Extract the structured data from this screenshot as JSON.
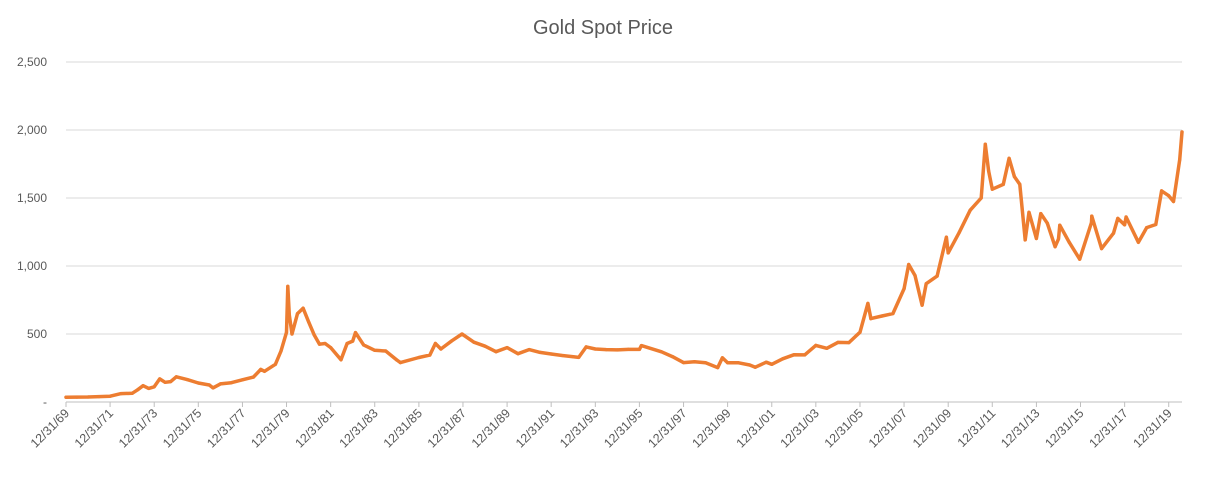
{
  "chart_data": {
    "type": "line",
    "title": "Gold Spot Price",
    "xlabel": "",
    "ylabel": "",
    "ylim": [
      0,
      2500
    ],
    "y_ticks": [
      {
        "value": 0,
        "label": "-"
      },
      {
        "value": 500,
        "label": "500"
      },
      {
        "value": 1000,
        "label": "1,000"
      },
      {
        "value": 1500,
        "label": "1,500"
      },
      {
        "value": 2000,
        "label": "2,000"
      },
      {
        "value": 2500,
        "label": "2,500"
      }
    ],
    "x_ticks": [
      "12/31/69",
      "12/31/71",
      "12/31/73",
      "12/31/75",
      "12/31/77",
      "12/31/79",
      "12/31/81",
      "12/31/83",
      "12/31/85",
      "12/31/87",
      "12/31/89",
      "12/31/91",
      "12/31/93",
      "12/31/95",
      "12/31/97",
      "12/31/99",
      "12/31/01",
      "12/31/03",
      "12/31/05",
      "12/31/07",
      "12/31/09",
      "12/31/11",
      "12/31/13",
      "12/31/15",
      "12/31/17",
      "12/31/19"
    ],
    "xlim": [
      "1969-12-31",
      "2020-08-07"
    ],
    "grid": true,
    "colors": {
      "line": "#ed7d31",
      "grid": "#d9d9d9",
      "text": "#595959"
    },
    "series": [
      {
        "color": "#ed7d31",
        "points": [
          [
            "1969-12-31",
            35
          ],
          [
            "1970-06-30",
            36
          ],
          [
            "1970-12-31",
            37
          ],
          [
            "1971-06-30",
            40
          ],
          [
            "1971-12-31",
            43
          ],
          [
            "1972-06-30",
            62
          ],
          [
            "1972-12-31",
            64
          ],
          [
            "1973-03-31",
            90
          ],
          [
            "1973-06-30",
            120
          ],
          [
            "1973-09-30",
            100
          ],
          [
            "1973-12-31",
            112
          ],
          [
            "1974-03-31",
            170
          ],
          [
            "1974-06-30",
            145
          ],
          [
            "1974-09-30",
            150
          ],
          [
            "1974-12-31",
            185
          ],
          [
            "1975-06-30",
            165
          ],
          [
            "1975-12-31",
            140
          ],
          [
            "1976-06-30",
            125
          ],
          [
            "1976-08-31",
            104
          ],
          [
            "1976-12-31",
            133
          ],
          [
            "1977-06-30",
            142
          ],
          [
            "1977-12-31",
            163
          ],
          [
            "1978-06-30",
            183
          ],
          [
            "1978-10-31",
            240
          ],
          [
            "1978-12-31",
            226
          ],
          [
            "1979-06-30",
            277
          ],
          [
            "1979-09-30",
            375
          ],
          [
            "1979-12-31",
            512
          ],
          [
            "1980-01-21",
            850
          ],
          [
            "1980-02-15",
            640
          ],
          [
            "1980-03-31",
            500
          ],
          [
            "1980-06-30",
            650
          ],
          [
            "1980-09-30",
            690
          ],
          [
            "1980-12-31",
            590
          ],
          [
            "1981-03-31",
            495
          ],
          [
            "1981-06-30",
            425
          ],
          [
            "1981-09-30",
            430
          ],
          [
            "1981-12-31",
            400
          ],
          [
            "1982-06-21",
            310
          ],
          [
            "1982-09-30",
            430
          ],
          [
            "1982-12-31",
            448
          ],
          [
            "1983-02-15",
            510
          ],
          [
            "1983-06-30",
            420
          ],
          [
            "1983-12-31",
            380
          ],
          [
            "1984-06-30",
            375
          ],
          [
            "1984-12-31",
            309
          ],
          [
            "1985-02-28",
            290
          ],
          [
            "1985-12-31",
            327
          ],
          [
            "1986-06-30",
            345
          ],
          [
            "1986-09-30",
            430
          ],
          [
            "1986-12-31",
            390
          ],
          [
            "1987-06-30",
            450
          ],
          [
            "1987-12-15",
            500
          ],
          [
            "1988-06-30",
            440
          ],
          [
            "1988-12-31",
            410
          ],
          [
            "1989-06-30",
            370
          ],
          [
            "1989-12-31",
            400
          ],
          [
            "1990-06-30",
            355
          ],
          [
            "1990-12-31",
            385
          ],
          [
            "1991-06-30",
            365
          ],
          [
            "1991-12-31",
            353
          ],
          [
            "1992-06-30",
            342
          ],
          [
            "1992-12-31",
            333
          ],
          [
            "1993-03-31",
            328
          ],
          [
            "1993-08-02",
            405
          ],
          [
            "1993-12-31",
            390
          ],
          [
            "1994-06-30",
            385
          ],
          [
            "1994-12-31",
            383
          ],
          [
            "1995-06-30",
            387
          ],
          [
            "1995-12-31",
            387
          ],
          [
            "1996-02-02",
            415
          ],
          [
            "1996-12-31",
            369
          ],
          [
            "1997-06-30",
            334
          ],
          [
            "1997-12-31",
            290
          ],
          [
            "1998-06-30",
            296
          ],
          [
            "1998-12-31",
            288
          ],
          [
            "1999-07-20",
            253
          ],
          [
            "1999-10-05",
            325
          ],
          [
            "1999-12-31",
            288
          ],
          [
            "2000-06-30",
            288
          ],
          [
            "2000-12-31",
            272
          ],
          [
            "2001-04-02",
            256
          ],
          [
            "2001-09-30",
            293
          ],
          [
            "2001-12-31",
            277
          ],
          [
            "2002-06-30",
            318
          ],
          [
            "2002-12-31",
            347
          ],
          [
            "2003-06-30",
            346
          ],
          [
            "2003-12-31",
            416
          ],
          [
            "2004-06-30",
            395
          ],
          [
            "2004-12-31",
            438
          ],
          [
            "2005-06-30",
            437
          ],
          [
            "2005-12-31",
            513
          ],
          [
            "2006-05-12",
            725
          ],
          [
            "2006-06-30",
            613
          ],
          [
            "2006-12-31",
            632
          ],
          [
            "2007-06-30",
            650
          ],
          [
            "2007-12-31",
            834
          ],
          [
            "2008-03-17",
            1011
          ],
          [
            "2008-06-30",
            930
          ],
          [
            "2008-10-24",
            712
          ],
          [
            "2008-12-31",
            870
          ],
          [
            "2009-06-30",
            926
          ],
          [
            "2009-12-02",
            1212
          ],
          [
            "2009-12-31",
            1096
          ],
          [
            "2010-06-30",
            1245
          ],
          [
            "2010-12-31",
            1410
          ],
          [
            "2011-06-30",
            1500
          ],
          [
            "2011-09-06",
            1895
          ],
          [
            "2011-10-31",
            1700
          ],
          [
            "2011-12-31",
            1565
          ],
          [
            "2012-06-30",
            1600
          ],
          [
            "2012-10-04",
            1792
          ],
          [
            "2012-12-31",
            1657
          ],
          [
            "2013-03-31",
            1600
          ],
          [
            "2013-06-28",
            1192
          ],
          [
            "2013-08-30",
            1395
          ],
          [
            "2013-12-31",
            1202
          ],
          [
            "2014-03-14",
            1385
          ],
          [
            "2014-06-30",
            1315
          ],
          [
            "2014-11-05",
            1142
          ],
          [
            "2014-12-31",
            1199
          ],
          [
            "2015-01-22",
            1300
          ],
          [
            "2015-06-30",
            1172
          ],
          [
            "2015-12-17",
            1050
          ],
          [
            "2016-06-30",
            1320
          ],
          [
            "2016-07-06",
            1367
          ],
          [
            "2016-12-15",
            1128
          ],
          [
            "2017-06-30",
            1241
          ],
          [
            "2017-09-08",
            1350
          ],
          [
            "2017-12-31",
            1303
          ],
          [
            "2018-01-25",
            1360
          ],
          [
            "2018-08-16",
            1174
          ],
          [
            "2018-12-31",
            1282
          ],
          [
            "2019-05-31",
            1305
          ],
          [
            "2019-09-04",
            1552
          ],
          [
            "2019-12-31",
            1517
          ],
          [
            "2020-03-19",
            1474
          ],
          [
            "2020-06-30",
            1781
          ],
          [
            "2020-08-07",
            1985
          ]
        ]
      }
    ]
  }
}
